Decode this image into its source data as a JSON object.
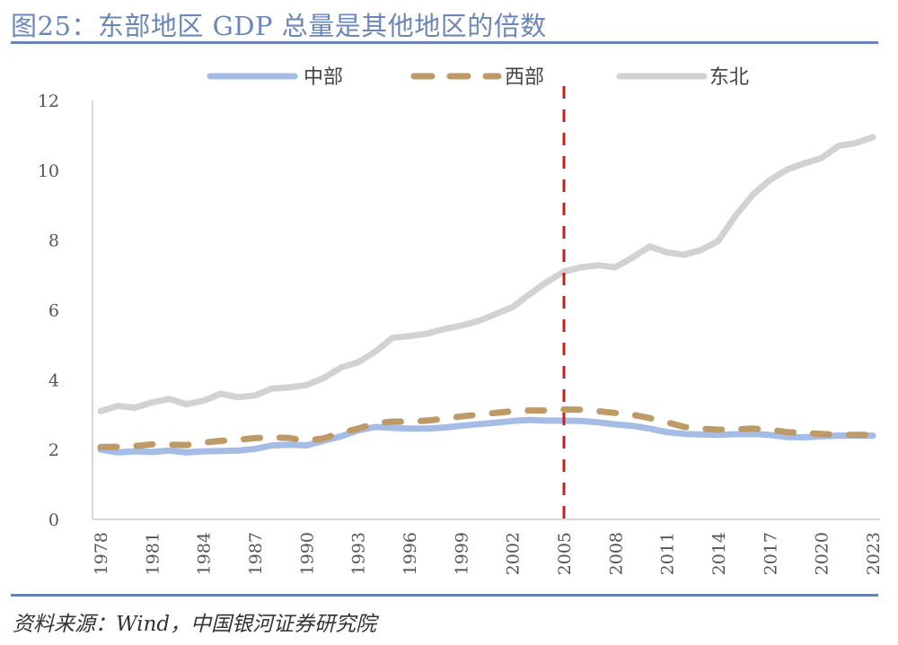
{
  "title": "图25：东部地区 GDP 总量是其他地区的倍数",
  "source": "资料来源：Wind，中国银河证券研究院",
  "colors": {
    "central": "#a4bce6",
    "west": "#bd9a66",
    "northeast": "#d3d1d1",
    "marker": "#c81e1e",
    "rule": "#6783b7",
    "title": "#6b86b8"
  },
  "chart_data": {
    "type": "line",
    "title": "东部地区 GDP 总量是其他地区的倍数",
    "xlabel": "",
    "ylabel": "",
    "ylim": [
      0,
      12
    ],
    "yticks": [
      0,
      2,
      4,
      6,
      8,
      10,
      12
    ],
    "xticks": [
      "1978",
      "1981",
      "1984",
      "1987",
      "1990",
      "1993",
      "1996",
      "1999",
      "2002",
      "2005",
      "2008",
      "2011",
      "2014",
      "2017",
      "2020",
      "2023"
    ],
    "x": [
      1978,
      1979,
      1980,
      1981,
      1982,
      1983,
      1984,
      1985,
      1986,
      1987,
      1988,
      1989,
      1990,
      1991,
      1992,
      1993,
      1994,
      1995,
      1996,
      1997,
      1998,
      1999,
      2000,
      2001,
      2002,
      2003,
      2004,
      2005,
      2006,
      2007,
      2008,
      2009,
      2010,
      2011,
      2012,
      2013,
      2014,
      2015,
      2016,
      2017,
      2018,
      2019,
      2020,
      2021,
      2022,
      2023
    ],
    "legend_position": "top",
    "grid": false,
    "reference_line": {
      "x": 2005,
      "style": "dashed",
      "color": "#c81e1e"
    },
    "series": [
      {
        "name": "中部",
        "style": "solid",
        "color": "#a4bce6",
        "values": [
          2.0,
          1.92,
          1.95,
          1.93,
          1.97,
          1.92,
          1.95,
          1.96,
          1.97,
          2.02,
          2.12,
          2.14,
          2.12,
          2.25,
          2.38,
          2.55,
          2.65,
          2.62,
          2.6,
          2.6,
          2.63,
          2.68,
          2.73,
          2.77,
          2.82,
          2.85,
          2.83,
          2.83,
          2.82,
          2.78,
          2.72,
          2.68,
          2.6,
          2.5,
          2.45,
          2.43,
          2.42,
          2.44,
          2.45,
          2.42,
          2.36,
          2.35,
          2.38,
          2.4,
          2.4,
          2.4
        ]
      },
      {
        "name": "西部",
        "style": "dashed",
        "color": "#bd9a66",
        "values": [
          2.07,
          2.08,
          2.1,
          2.15,
          2.14,
          2.13,
          2.2,
          2.25,
          2.28,
          2.33,
          2.35,
          2.33,
          2.25,
          2.32,
          2.48,
          2.6,
          2.75,
          2.8,
          2.8,
          2.83,
          2.88,
          2.95,
          3.0,
          3.05,
          3.1,
          3.12,
          3.12,
          3.15,
          3.14,
          3.1,
          3.05,
          3.0,
          2.9,
          2.78,
          2.65,
          2.6,
          2.57,
          2.58,
          2.6,
          2.57,
          2.5,
          2.48,
          2.45,
          2.42,
          2.42,
          2.42
        ]
      },
      {
        "name": "东北",
        "style": "solid",
        "color": "#d3d1d1",
        "values": [
          3.1,
          3.25,
          3.2,
          3.35,
          3.45,
          3.3,
          3.4,
          3.6,
          3.5,
          3.55,
          3.75,
          3.78,
          3.85,
          4.05,
          4.35,
          4.5,
          4.8,
          5.2,
          5.25,
          5.32,
          5.45,
          5.55,
          5.68,
          5.88,
          6.08,
          6.45,
          6.8,
          7.1,
          7.22,
          7.28,
          7.22,
          7.5,
          7.82,
          7.65,
          7.58,
          7.72,
          7.98,
          8.7,
          9.3,
          9.72,
          10.02,
          10.2,
          10.35,
          10.7,
          10.78,
          10.95
        ]
      }
    ]
  }
}
